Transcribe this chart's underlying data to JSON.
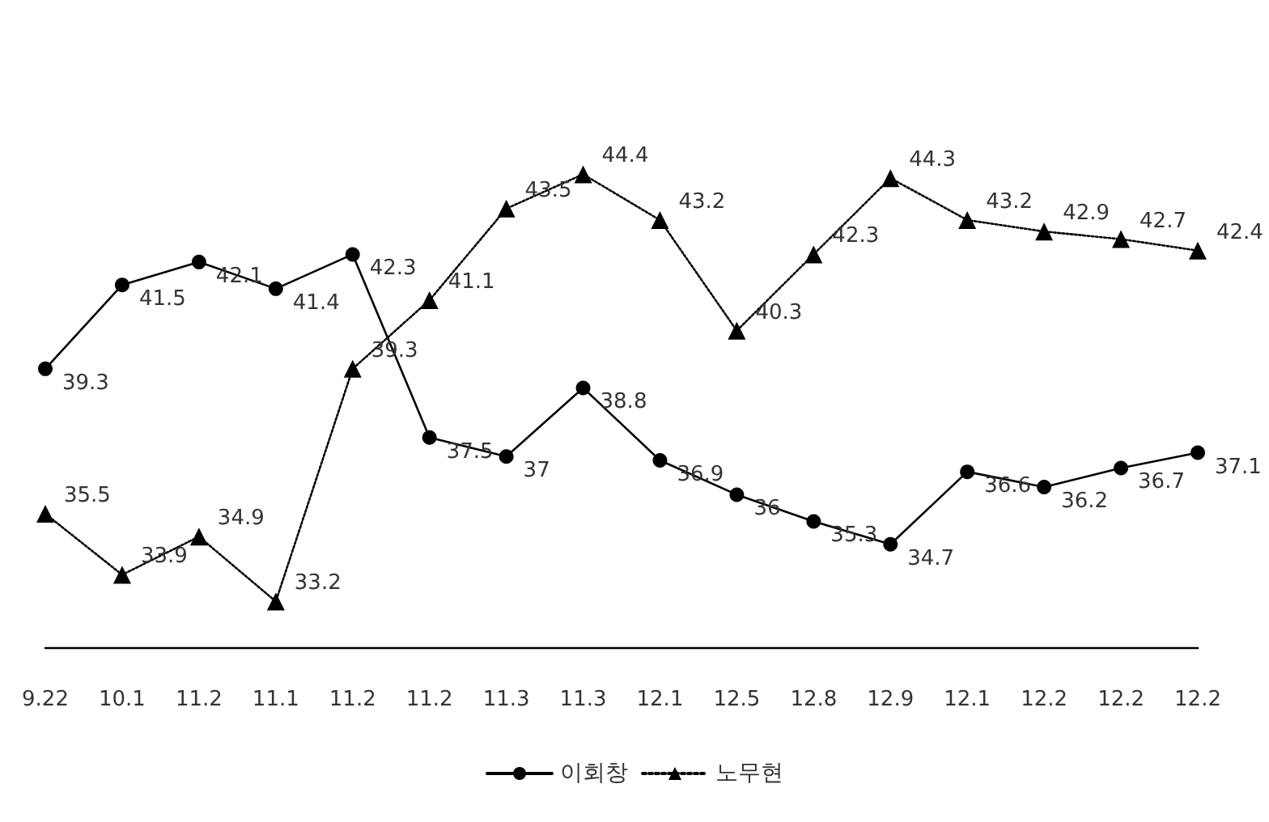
{
  "chart_data": {
    "type": "line",
    "categories": [
      "9.22",
      "10.1",
      "11.2",
      "11.1",
      "11.2",
      "11.2",
      "11.3",
      "11.3",
      "12.1",
      "12.5",
      "12.8",
      "12.9",
      "12.1",
      "12.2",
      "12.2",
      "12.2"
    ],
    "series": [
      {
        "name": "이회창",
        "color": "#000000",
        "marker": "circle",
        "line_style": "solid",
        "values": [
          39.3,
          41.5,
          42.1,
          41.4,
          42.3,
          37.5,
          37,
          38.8,
          36.9,
          36,
          35.3,
          34.7,
          36.6,
          36.2,
          36.7,
          37.1
        ]
      },
      {
        "name": "노무현",
        "color": "#000000",
        "marker": "triangle",
        "line_style": "dotted",
        "values": [
          35.5,
          33.9,
          34.9,
          33.2,
          39.3,
          41.1,
          43.5,
          44.4,
          43.2,
          40.3,
          42.3,
          44.3,
          43.2,
          42.9,
          42.7,
          42.4
        ]
      }
    ],
    "data_labels": true,
    "grid": false,
    "legend": "bottom"
  }
}
